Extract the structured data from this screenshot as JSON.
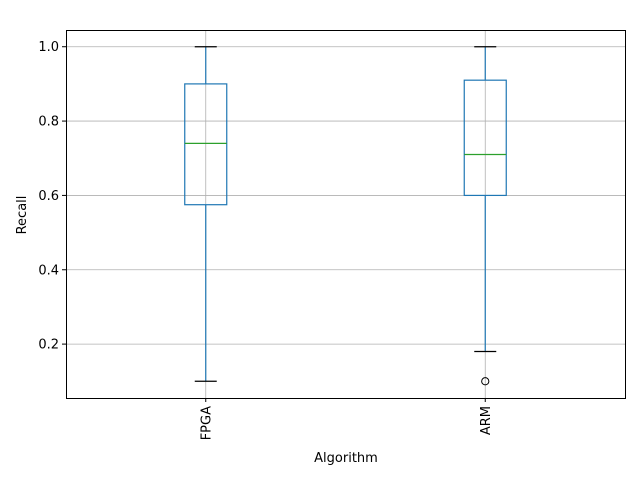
{
  "chart_data": {
    "type": "box",
    "title": "",
    "xlabel": "Algorithm",
    "ylabel": "Recall",
    "ylim": [
      0.055,
      1.045
    ],
    "yticks": [
      0.2,
      0.4,
      0.6,
      0.8,
      1.0
    ],
    "ytick_labels": [
      "0.2",
      "0.4",
      "0.6",
      "0.8",
      "1.0"
    ],
    "grid": true,
    "categories": [
      "FPGA",
      "ARM"
    ],
    "boxes": [
      {
        "category": "FPGA",
        "whisker_low": 0.1,
        "q1": 0.575,
        "median": 0.74,
        "q3": 0.9,
        "whisker_high": 1.0,
        "outliers": []
      },
      {
        "category": "ARM",
        "whisker_low": 0.18,
        "q1": 0.6,
        "median": 0.71,
        "q3": 0.91,
        "whisker_high": 1.0,
        "outliers": [
          0.1
        ]
      }
    ],
    "colors": {
      "box": "#1f77b4",
      "median": "#2ca02c",
      "whisker": "#1f77b4",
      "cap": "#000000",
      "grid": "#b0b0b0",
      "flier": "#000000"
    }
  }
}
